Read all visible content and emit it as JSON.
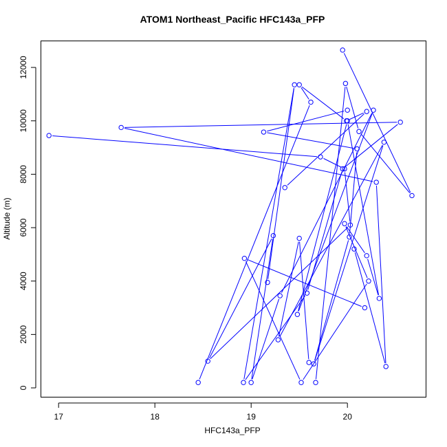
{
  "chart_data": {
    "type": "line",
    "title": "ATOM1 Northeast_Pacific HFC143a_PFP",
    "xlabel": "HFC143a_PFP",
    "ylabel": "Altitude (m)",
    "xlim": [
      16.82,
      20.82
    ],
    "ylim": [
      -360,
      12980
    ],
    "xticks": [
      17,
      18,
      19,
      20
    ],
    "yticks": [
      0,
      2000,
      4000,
      6000,
      8000,
      10000,
      12000
    ],
    "yticks_display": [
      "0",
      "2000",
      "4000",
      "6000",
      "8000",
      "10000",
      "12000"
    ],
    "line_color": "#0000ff",
    "grid": false,
    "legend": "none",
    "series": [
      {
        "x": [
          19.95,
          20.67,
          20.12,
          19.98,
          19.67
        ],
        "y": [
          12650,
          7200,
          9600,
          11400,
          200
        ]
      },
      {
        "x": [
          18.45,
          19.62,
          19.5,
          19.99,
          20.2,
          19.35
        ],
        "y": [
          200,
          10700,
          11350,
          10000,
          10350,
          7500
        ]
      },
      {
        "x": [
          19.17,
          19.45,
          18.92,
          19.58,
          19.95,
          20.55,
          17.65,
          20.3,
          20.4,
          20.07
        ],
        "y": [
          3950,
          11350,
          200,
          3550,
          8200,
          9950,
          9750,
          7700,
          800,
          5200
        ]
      },
      {
        "x": [
          20.0,
          19.13,
          20.1,
          20.02,
          19.65,
          20.38,
          19.28,
          19.5,
          19.6
        ],
        "y": [
          10400,
          9580,
          8950,
          5650,
          900,
          9200,
          1800,
          5600,
          950
        ]
      },
      {
        "x": [
          16.9,
          19.72,
          19.97,
          20.03,
          18.55,
          19.23,
          19.0,
          19.3,
          20.27,
          19.48,
          20.0,
          20.33,
          20.2,
          19.97,
          20.22,
          19.52,
          18.93,
          20.18
        ],
        "y": [
          9450,
          8650,
          8200,
          6100,
          1000,
          5700,
          200,
          3450,
          10400,
          2750,
          10000,
          3350,
          4950,
          6150,
          4000,
          200,
          4850,
          3000
        ]
      }
    ]
  }
}
